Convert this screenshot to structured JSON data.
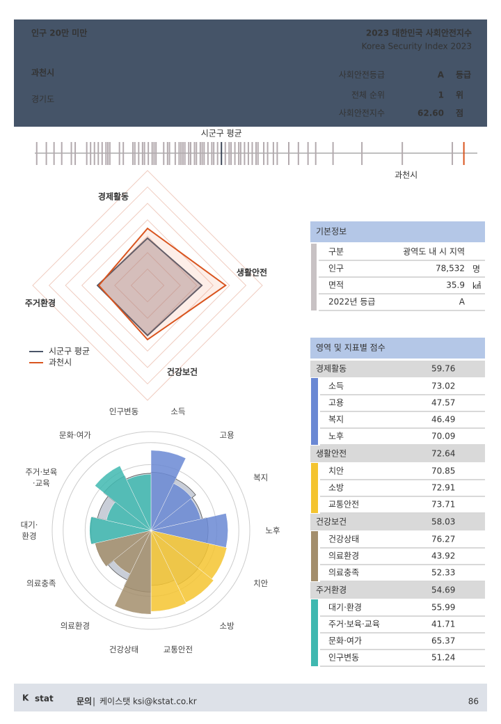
{
  "header": {
    "category": "인구 20만 미만",
    "title": "2023 대한민국 사회안전지수",
    "subtitle": "Korea Security Index 2023",
    "city": "과천시",
    "province": "경기도",
    "stats": [
      {
        "label": "사회안전등급",
        "value": "A",
        "unit": "등급"
      },
      {
        "label": "전체 순위",
        "value": 1,
        "unit": "위"
      },
      {
        "label": "사회안전지수",
        "value": "62.60",
        "unit": "점"
      }
    ]
  },
  "chart_data": [
    {
      "type": "strip",
      "average_label": "시군구 평균",
      "self_label": "과천시",
      "xlim": [
        40.3,
        63.3
      ],
      "color": "#b3aaae",
      "average_color": "#3b4557",
      "self_color": "#d9541e",
      "values": [
        40.4,
        40.9,
        41.3,
        41.7,
        42.2,
        42.4,
        43.0,
        43.2,
        43.4,
        43.6,
        43.8,
        44.0,
        44.1,
        44.2,
        44.7,
        44.9,
        45.4,
        45.5,
        45.7,
        45.9,
        46.0,
        46.2,
        46.4,
        46.5,
        46.6,
        47.0,
        47.2,
        47.3,
        47.6,
        47.8,
        47.9,
        48.0,
        48.1,
        48.3,
        48.4,
        48.6,
        48.7,
        48.9,
        49.0,
        49.1,
        49.3,
        49.5,
        49.6,
        49.8,
        50.2,
        50.4,
        50.5,
        50.7,
        50.9,
        51.0,
        51.2,
        51.4,
        51.6,
        51.8,
        51.9,
        52.2,
        52.4,
        52.7,
        52.9,
        53.5,
        54.0,
        54.5,
        54.9,
        55.8,
        57.3,
        59.4,
        62.0
      ],
      "average": 50.0,
      "self": 62.6
    },
    {
      "type": "radar",
      "categories": [
        "경제활동",
        "생활안전",
        "건강보건",
        "주거환경"
      ],
      "rlim": [
        25,
        95
      ],
      "rticks": [
        35,
        45,
        55,
        65,
        75,
        85,
        95
      ],
      "grid": true,
      "series": [
        {
          "name": "시군구 평균",
          "color": "#4a5568",
          "values": [
            53.8,
            58.1,
            55.5,
            55.5
          ]
        },
        {
          "name": "과천시",
          "color": "#d9541e",
          "values": [
            59.76,
            72.64,
            58.03,
            54.69
          ]
        }
      ]
    },
    {
      "type": "polar_bar",
      "categories": [
        "소득",
        "고용",
        "복지",
        "노후",
        "치안",
        "소방",
        "교통안전",
        "건강상태",
        "의료환경",
        "의료충족",
        "대기·\n환경",
        "주거·보육\n·교육",
        "문화·여가",
        "인구변동"
      ],
      "values": [
        73.02,
        47.57,
        46.49,
        70.09,
        70.85,
        72.91,
        73.71,
        76.27,
        43.92,
        52.33,
        55.99,
        41.71,
        65.37,
        51.24
      ],
      "colors": [
        "#6a88d4",
        "#6a88d4",
        "#6a88d4",
        "#6a88d4",
        "#f4c430",
        "#f4c430",
        "#f4c430",
        "#a38e6c",
        "#a38e6c",
        "#a38e6c",
        "#3fb8b0",
        "#3fb8b0",
        "#3fb8b0",
        "#3fb8b0"
      ],
      "reference_values": [
        53,
        52,
        48,
        52,
        54,
        55,
        50,
        56,
        50,
        52,
        55,
        50,
        55,
        52
      ],
      "reference_color": "#c9ced8",
      "rlim": [
        0,
        90
      ],
      "rticks": [
        20,
        40,
        60,
        80,
        90
      ],
      "grid": true
    }
  ],
  "basic_info": {
    "title": "기본정보",
    "rows": [
      {
        "label": "구분",
        "value": "광역도 내 시 지역"
      },
      {
        "label": "인구",
        "value": "78,532",
        "unit": "명"
      },
      {
        "label": "면적",
        "value": 35.9,
        "unit": "㎢"
      },
      {
        "label": "2022년 등급",
        "value": "A"
      }
    ]
  },
  "scores": {
    "title": "영역 및 지표별 점수",
    "groups": [
      {
        "name": "경제활동",
        "score": 59.76,
        "color": "#6a88d4",
        "items": [
          {
            "name": "소득",
            "score": 73.02
          },
          {
            "name": "고용",
            "score": 47.57
          },
          {
            "name": "복지",
            "score": 46.49
          },
          {
            "name": "노후",
            "score": 70.09
          }
        ]
      },
      {
        "name": "생활안전",
        "score": 72.64,
        "color": "#f4c430",
        "items": [
          {
            "name": "치안",
            "score": 70.85
          },
          {
            "name": "소방",
            "score": 72.91
          },
          {
            "name": "교통안전",
            "score": 73.71
          }
        ]
      },
      {
        "name": "건강보건",
        "score": 58.03,
        "color": "#a38e6c",
        "items": [
          {
            "name": "건강상태",
            "score": 76.27
          },
          {
            "name": "의료환경",
            "score": 43.92
          },
          {
            "name": "의료충족",
            "score": 52.33
          }
        ]
      },
      {
        "name": "주거환경",
        "score": 54.69,
        "color": "#3fb8b0",
        "items": [
          {
            "name": "대기·환경",
            "score": 55.99
          },
          {
            "name": "주거·보육·교육",
            "score": 41.71
          },
          {
            "name": "문화·여가",
            "score": 65.37
          },
          {
            "name": "인구변동",
            "score": 51.24
          }
        ]
      }
    ]
  },
  "footer": {
    "logo": [
      "K",
      "stat"
    ],
    "contact_label": "문의",
    "contact": "케이스탯 ksi@kstat.co.kr",
    "page": 86
  }
}
